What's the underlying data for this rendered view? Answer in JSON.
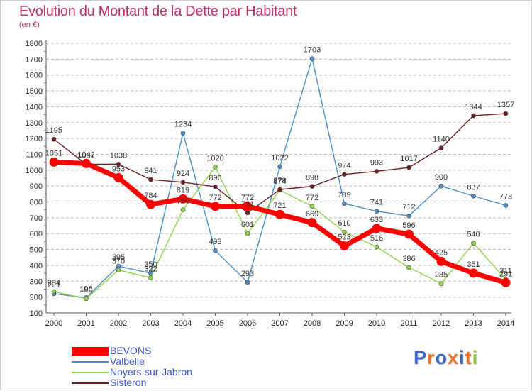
{
  "header": {
    "title": "Evolution du Montant de la Dette par Habitant",
    "unit": "(en €)"
  },
  "logo": {
    "text": "Proxiti"
  },
  "colors": {
    "title": "#c0306a",
    "grid": "#b8b8b8",
    "minor_tick": "#d23c3c",
    "legend_text": "#3a57c8"
  },
  "chart_data": {
    "type": "line",
    "x": [
      "2000",
      "2001",
      "2002",
      "2003",
      "2004",
      "2005",
      "2006",
      "2007",
      "2008",
      "2009",
      "2010",
      "2011",
      "2012",
      "2013",
      "2014"
    ],
    "ylim": [
      100,
      1800
    ],
    "y_ticks": [
      100,
      200,
      300,
      400,
      500,
      600,
      700,
      800,
      900,
      1000,
      1100,
      1200,
      1300,
      1400,
      1500,
      1600,
      1700,
      1800
    ],
    "grid": true,
    "grid_style": "dashed horizontal",
    "legend_position": "bottom-left",
    "series": [
      {
        "name": "BEVONS",
        "color": "#ff0000",
        "values": [
          1051,
          1042,
          953,
          784,
          819,
          772,
          772,
          721,
          669,
          523,
          633,
          596,
          425,
          351,
          291
        ]
      },
      {
        "name": "Valbelle",
        "color": "#4f8fc9",
        "values": [
          221,
          196,
          395,
          350,
          1234,
          493,
          293,
          1022,
          1703,
          789,
          741,
          712,
          900,
          837,
          778
        ]
      },
      {
        "name": "Noyers-sur-Jabron",
        "color": "#8fd44a",
        "values": [
          234,
          190,
          370,
          322,
          750,
          1020,
          601,
          874,
          772,
          610,
          516,
          386,
          285,
          540,
          311
        ]
      },
      {
        "name": "Sisteron",
        "color": "#6e1f24",
        "values": [
          1195,
          1037,
          1038,
          941,
          924,
          896,
          731,
          878,
          898,
          974,
          993,
          1017,
          1140,
          1344,
          1357
        ]
      }
    ]
  }
}
